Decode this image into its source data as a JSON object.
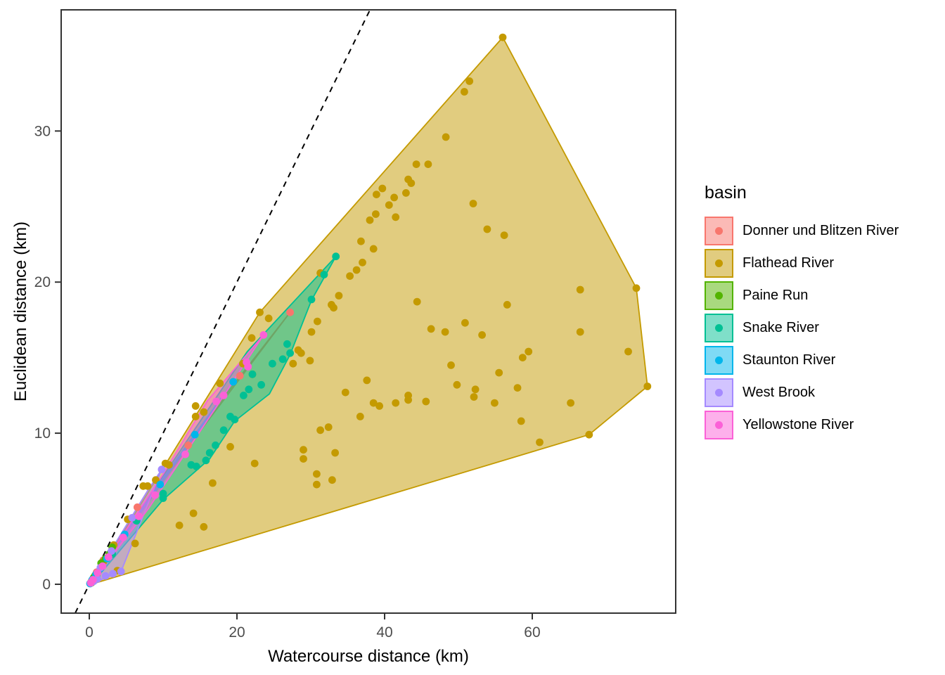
{
  "chart_data": {
    "type": "scatter",
    "title": "",
    "xlabel": "Watercourse distance (km)",
    "ylabel": "Euclidean distance (km)",
    "legend_title": "basin",
    "xlim": [
      -3.81,
      79.43
    ],
    "ylim": [
      -1.91,
      38.02
    ],
    "x_ticks": [
      0,
      20,
      40,
      60
    ],
    "y_ticks": [
      0,
      10,
      20,
      30
    ],
    "grid": false,
    "legend_position": "right",
    "hull_fill_opacity": 0.5,
    "reference_line": {
      "name": "1:1 identity line",
      "slope": 1,
      "intercept": 0,
      "style": "dashed",
      "color": "#000000"
    },
    "series": [
      {
        "name": "Donner und Blitzen River",
        "color": "#F8766D",
        "points": [
          [
            0.1,
            0.05
          ],
          [
            0.5,
            0.35
          ],
          [
            1.0,
            0.8
          ],
          [
            1.9,
            1.6
          ],
          [
            6.5,
            5.1
          ],
          [
            13.4,
            9.2
          ],
          [
            20.4,
            13.8
          ],
          [
            27.2,
            18.0
          ]
        ],
        "hull": [
          [
            0.05,
            0.0
          ],
          [
            13.6,
            9.5
          ],
          [
            27.2,
            18.0
          ],
          [
            13.4,
            9.1
          ],
          [
            0.05,
            0.0
          ]
        ]
      },
      {
        "name": "Flathead River",
        "color": "#C49A00",
        "points": [
          [
            56.0,
            36.2
          ],
          [
            51.5,
            33.3
          ],
          [
            50.8,
            32.6
          ],
          [
            48.3,
            29.6
          ],
          [
            45.9,
            27.8
          ],
          [
            44.3,
            27.8
          ],
          [
            43.2,
            26.8
          ],
          [
            43.6,
            26.55
          ],
          [
            42.9,
            25.9
          ],
          [
            41.3,
            25.6
          ],
          [
            40.6,
            25.1
          ],
          [
            41.5,
            24.3
          ],
          [
            39.7,
            26.2
          ],
          [
            38.9,
            25.8
          ],
          [
            38.8,
            24.5
          ],
          [
            38.0,
            24.1
          ],
          [
            52.0,
            25.2
          ],
          [
            53.9,
            23.5
          ],
          [
            56.2,
            23.1
          ],
          [
            36.8,
            22.7
          ],
          [
            38.5,
            22.2
          ],
          [
            37.0,
            21.3
          ],
          [
            36.2,
            20.8
          ],
          [
            35.3,
            20.4
          ],
          [
            33.8,
            19.1
          ],
          [
            32.8,
            18.5
          ],
          [
            33.1,
            18.3
          ],
          [
            31.3,
            20.6
          ],
          [
            30.9,
            17.4
          ],
          [
            30.1,
            16.7
          ],
          [
            29.9,
            14.8
          ],
          [
            28.7,
            15.3
          ],
          [
            28.3,
            15.5
          ],
          [
            27.6,
            14.6
          ],
          [
            24.3,
            17.6
          ],
          [
            23.1,
            18.0
          ],
          [
            22.0,
            16.3
          ],
          [
            22.1,
            13.9
          ],
          [
            20.8,
            14.6
          ],
          [
            17.7,
            13.3
          ],
          [
            15.5,
            11.4
          ],
          [
            14.4,
            11.8
          ],
          [
            14.4,
            11.1
          ],
          [
            44.4,
            18.7
          ],
          [
            46.3,
            16.9
          ],
          [
            48.2,
            16.7
          ],
          [
            50.9,
            17.3
          ],
          [
            53.2,
            16.5
          ],
          [
            56.6,
            18.5
          ],
          [
            58.7,
            15.0
          ],
          [
            59.5,
            15.4
          ],
          [
            49.0,
            14.5
          ],
          [
            55.5,
            14.0
          ],
          [
            58.0,
            13.0
          ],
          [
            49.8,
            13.2
          ],
          [
            52.3,
            12.9
          ],
          [
            52.1,
            12.4
          ],
          [
            43.2,
            12.5
          ],
          [
            43.2,
            12.2
          ],
          [
            41.5,
            12.0
          ],
          [
            45.6,
            12.1
          ],
          [
            54.9,
            12.0
          ],
          [
            65.2,
            12.0
          ],
          [
            37.6,
            13.5
          ],
          [
            34.7,
            12.7
          ],
          [
            38.5,
            12.0
          ],
          [
            39.3,
            11.8
          ],
          [
            36.7,
            11.1
          ],
          [
            31.3,
            10.2
          ],
          [
            32.4,
            10.4
          ],
          [
            58.5,
            10.8
          ],
          [
            61.0,
            9.4
          ],
          [
            66.5,
            19.5
          ],
          [
            66.5,
            16.7
          ],
          [
            73.0,
            15.4
          ],
          [
            74.1,
            19.6
          ],
          [
            75.6,
            13.1
          ],
          [
            67.7,
            9.9
          ],
          [
            29.0,
            8.9
          ],
          [
            29.0,
            8.3
          ],
          [
            30.8,
            7.3
          ],
          [
            30.8,
            6.6
          ],
          [
            32.9,
            6.9
          ],
          [
            33.3,
            8.7
          ],
          [
            22.4,
            8.0
          ],
          [
            19.1,
            9.1
          ],
          [
            16.7,
            6.7
          ],
          [
            14.1,
            4.7
          ],
          [
            12.2,
            3.9
          ],
          [
            15.5,
            3.8
          ],
          [
            10.8,
            7.9
          ],
          [
            10.3,
            8.0
          ],
          [
            9.0,
            6.9
          ],
          [
            7.9,
            6.5
          ],
          [
            7.3,
            6.5
          ],
          [
            6.2,
            2.7
          ],
          [
            3.8,
            0.9
          ],
          [
            5.2,
            4.3
          ],
          [
            3.3,
            2.6
          ],
          [
            1.9,
            1.5
          ],
          [
            0.8,
            0.6
          ],
          [
            0.3,
            0.2
          ]
        ],
        "hull": [
          [
            0.25,
            0.0
          ],
          [
            23.1,
            18.0
          ],
          [
            56.0,
            36.2
          ],
          [
            74.1,
            19.6
          ],
          [
            75.6,
            13.1
          ],
          [
            67.7,
            9.9
          ],
          [
            0.25,
            0.0
          ]
        ]
      },
      {
        "name": "Paine Run",
        "color": "#53B400",
        "points": [
          [
            0.3,
            0.1
          ],
          [
            0.6,
            0.45
          ],
          [
            0.9,
            0.6
          ],
          [
            1.6,
            1.4
          ],
          [
            2.2,
            1.7
          ],
          [
            2.7,
            2.0
          ],
          [
            3.1,
            2.45
          ]
        ],
        "hull": [
          [
            0.15,
            0.02
          ],
          [
            1.6,
            1.45
          ],
          [
            3.15,
            2.5
          ],
          [
            2.5,
            1.75
          ],
          [
            0.7,
            0.15
          ],
          [
            0.15,
            0.02
          ]
        ]
      },
      {
        "name": "Snake River",
        "color": "#00C094",
        "points": [
          [
            0.15,
            0.08
          ],
          [
            0.5,
            0.3
          ],
          [
            1.0,
            0.6
          ],
          [
            3.1,
            2.0
          ],
          [
            6.4,
            4.2
          ],
          [
            10.0,
            6.0
          ],
          [
            10.0,
            5.7
          ],
          [
            13.8,
            7.9
          ],
          [
            14.5,
            7.8
          ],
          [
            15.8,
            8.2
          ],
          [
            16.3,
            8.7
          ],
          [
            17.1,
            9.2
          ],
          [
            18.2,
            10.2
          ],
          [
            19.1,
            11.1
          ],
          [
            19.7,
            10.9
          ],
          [
            20.9,
            12.5
          ],
          [
            21.6,
            12.9
          ],
          [
            22.1,
            13.9
          ],
          [
            23.3,
            13.2
          ],
          [
            24.8,
            14.6
          ],
          [
            26.2,
            14.9
          ],
          [
            26.8,
            15.9
          ],
          [
            27.2,
            15.3
          ],
          [
            30.1,
            18.85
          ],
          [
            31.8,
            20.5
          ],
          [
            33.4,
            21.7
          ]
        ],
        "hull": [
          [
            0.15,
            0.05
          ],
          [
            21.4,
            15.4
          ],
          [
            33.4,
            21.7
          ],
          [
            30.1,
            18.8
          ],
          [
            27.2,
            15.2
          ],
          [
            24.4,
            12.6
          ],
          [
            19.7,
            10.8
          ],
          [
            16.3,
            8.3
          ],
          [
            10.0,
            5.6
          ],
          [
            0.3,
            0.02
          ],
          [
            0.15,
            0.05
          ]
        ]
      },
      {
        "name": "Staunton River",
        "color": "#00B6EB",
        "points": [
          [
            0.1,
            0.05
          ],
          [
            0.4,
            0.3
          ],
          [
            0.9,
            0.65
          ],
          [
            1.5,
            1.05
          ],
          [
            2.4,
            1.7
          ],
          [
            4.8,
            3.3
          ],
          [
            9.6,
            6.6
          ],
          [
            14.3,
            9.9
          ],
          [
            19.5,
            13.4
          ]
        ],
        "hull": [
          [
            0.05,
            0.0
          ],
          [
            9.7,
            6.85
          ],
          [
            19.5,
            13.4
          ],
          [
            9.5,
            6.5
          ],
          [
            0.05,
            0.0
          ]
        ]
      },
      {
        "name": "West Brook",
        "color": "#A58AFF",
        "points": [
          [
            0.2,
            0.08
          ],
          [
            0.6,
            0.2
          ],
          [
            1.1,
            0.35
          ],
          [
            2.2,
            0.55
          ],
          [
            3.2,
            0.7
          ],
          [
            4.3,
            0.85
          ],
          [
            1.5,
            1.1
          ],
          [
            3.0,
            2.2
          ],
          [
            5.8,
            4.4
          ],
          [
            9.8,
            7.6
          ]
        ],
        "hull": [
          [
            0.1,
            0.0
          ],
          [
            4.3,
            0.85
          ],
          [
            9.8,
            7.6
          ],
          [
            7.9,
            6.2
          ],
          [
            0.1,
            0.0
          ]
        ]
      },
      {
        "name": "Yellowstone River",
        "color": "#FB61D7",
        "points": [
          [
            0.2,
            0.1
          ],
          [
            0.5,
            0.3
          ],
          [
            1.1,
            0.75
          ],
          [
            1.8,
            1.2
          ],
          [
            2.6,
            1.8
          ],
          [
            4.6,
            3.1
          ],
          [
            6.7,
            4.5
          ],
          [
            8.9,
            5.9
          ],
          [
            13.0,
            8.6
          ],
          [
            17.2,
            12.1
          ],
          [
            18.2,
            12.5
          ],
          [
            21.3,
            14.7
          ],
          [
            21.5,
            14.4
          ],
          [
            23.6,
            16.5
          ]
        ],
        "hull": [
          [
            0.1,
            0.0
          ],
          [
            10.0,
            7.3
          ],
          [
            16.0,
            12.15
          ],
          [
            23.6,
            16.5
          ],
          [
            17.3,
            11.8
          ],
          [
            8.0,
            5.0
          ],
          [
            0.1,
            0.0
          ]
        ]
      }
    ]
  },
  "colors": {
    "background": "#FFFFFF",
    "panel_border": "#333333",
    "tick_mark": "#333333",
    "tick_text": "#4D4D4D",
    "axis_title_text": "#000000",
    "legend_text": "#000000"
  }
}
